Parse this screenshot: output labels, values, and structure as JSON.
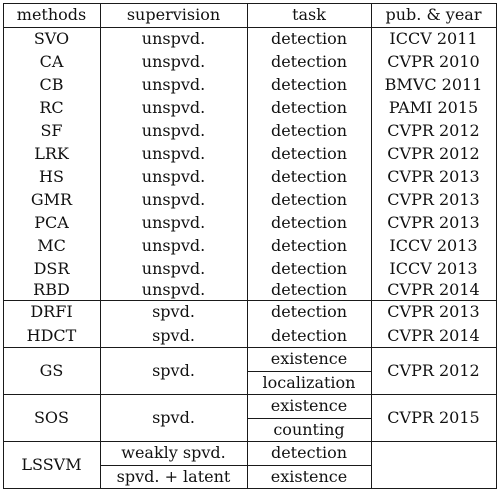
{
  "table": {
    "headers": [
      "methods",
      "supervision",
      "task",
      "pub. & year"
    ],
    "rows": [
      {
        "method": "SVO",
        "supervision": "unspvd.",
        "task": "detection",
        "pub": "ICCV 2011"
      },
      {
        "method": "CA",
        "supervision": "unspvd.",
        "task": "detection",
        "pub": "CVPR 2010"
      },
      {
        "method": "CB",
        "supervision": "unspvd.",
        "task": "detection",
        "pub": "BMVC 2011"
      },
      {
        "method": "RC",
        "supervision": "unspvd.",
        "task": "detection",
        "pub": "PAMI 2015"
      },
      {
        "method": "SF",
        "supervision": "unspvd.",
        "task": "detection",
        "pub": "CVPR 2012"
      },
      {
        "method": "LRK",
        "supervision": "unspvd.",
        "task": "detection",
        "pub": "CVPR 2012"
      },
      {
        "method": "HS",
        "supervision": "unspvd.",
        "task": "detection",
        "pub": "CVPR 2013"
      },
      {
        "method": "GMR",
        "supervision": "unspvd.",
        "task": "detection",
        "pub": "CVPR 2013"
      },
      {
        "method": "PCA",
        "supervision": "unspvd.",
        "task": "detection",
        "pub": "CVPR 2013"
      },
      {
        "method": "MC",
        "supervision": "unspvd.",
        "task": "detection",
        "pub": "ICCV 2013"
      },
      {
        "method": "DSR",
        "supervision": "unspvd.",
        "task": "detection",
        "pub": "ICCV 2013"
      },
      {
        "method": "RBD",
        "supervision": "unspvd.",
        "task": "detection",
        "pub": "CVPR 2014"
      },
      {
        "method": "DRFI",
        "supervision": "spvd.",
        "task": "detection",
        "pub": "CVPR 2013"
      },
      {
        "method": "HDCT",
        "supervision": "spvd.",
        "task": "detection",
        "pub": "CVPR 2014"
      }
    ],
    "gs": {
      "method": "GS",
      "supervision": "spvd.",
      "task_1": "existence",
      "task_2": "localization",
      "pub": "CVPR 2012"
    },
    "sos": {
      "method": "SOS",
      "supervision": "spvd.",
      "task_1": "existence",
      "task_2": "counting",
      "pub": "CVPR 2015"
    },
    "lssvm": {
      "method": "LSSVM",
      "supervision_1": "weakly spvd.",
      "task_1": "detection",
      "supervision_2": "spvd. + latent",
      "task_2": "existence",
      "pub": ""
    }
  }
}
